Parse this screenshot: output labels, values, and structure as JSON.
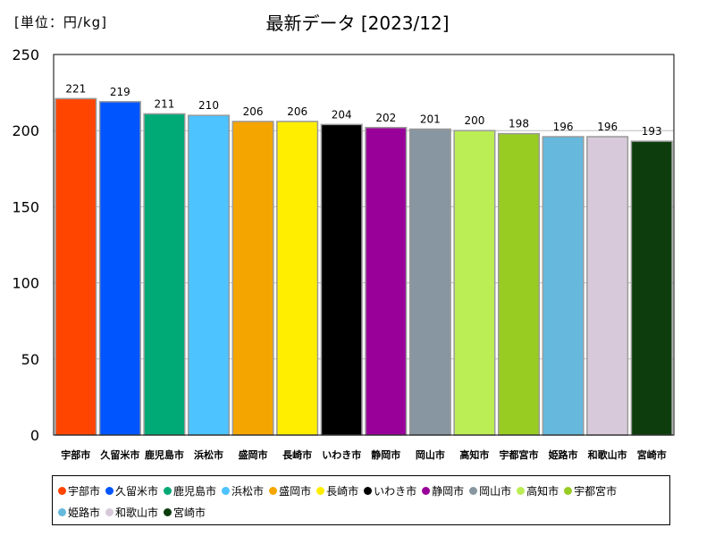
{
  "chart_data": {
    "type": "bar",
    "title": "最新データ [2023/12]",
    "unit_label": "[単位：円/kg]",
    "categories": [
      "宇部市",
      "久留米市",
      "鹿児島市",
      "浜松市",
      "盛岡市",
      "長崎市",
      "いわき市",
      "静岡市",
      "岡山市",
      "高知市",
      "宇都宮市",
      "姫路市",
      "和歌山市",
      "宮崎市"
    ],
    "values": [
      221,
      219,
      211,
      210,
      206,
      206,
      204,
      202,
      201,
      200,
      198,
      196,
      196,
      193
    ],
    "colors": [
      "#ff4500",
      "#0055ff",
      "#00aa77",
      "#4dc3ff",
      "#f5a500",
      "#ffee00",
      "#000000",
      "#990099",
      "#8796a0",
      "#bbee55",
      "#99cc22",
      "#66b8dd",
      "#d8c9da",
      "#0d3d0d"
    ],
    "ylim": [
      0,
      250
    ],
    "yticks": [
      0,
      50,
      100,
      150,
      200,
      250
    ],
    "grid": true,
    "legend_position": "bottom"
  }
}
